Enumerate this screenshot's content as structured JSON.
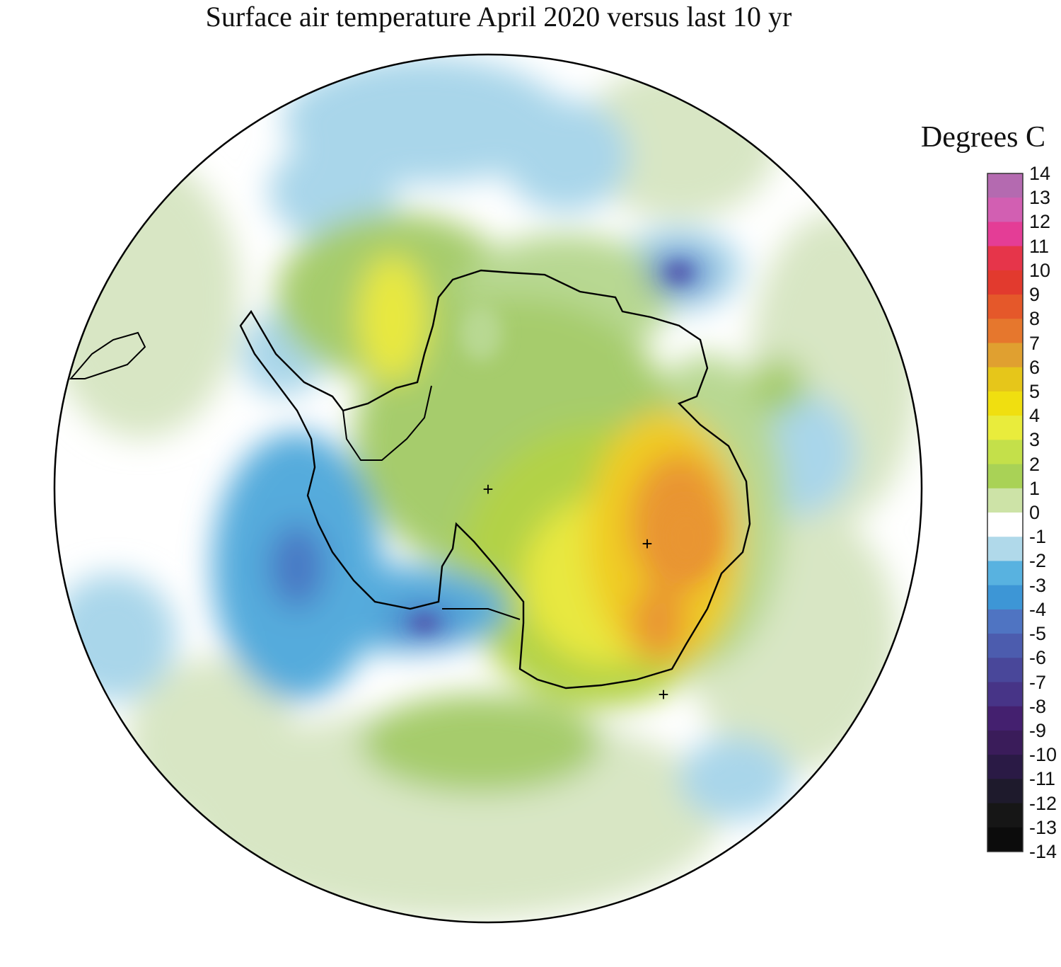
{
  "title": "Surface air temperature April 2020 versus last 10 yr",
  "legend": {
    "title": "Degrees C",
    "ticks": [
      "14",
      "13",
      "12",
      "11",
      "10",
      "9",
      "8",
      "7",
      "6",
      "5",
      "4",
      "3",
      "2",
      "1",
      "0",
      "-1",
      "-2",
      "-3",
      "-4",
      "-5",
      "-6",
      "-7",
      "-8",
      "-9",
      "-10",
      "-11",
      "-12",
      "-13",
      "-14"
    ],
    "colors": [
      "#b46ab0",
      "#d25fb2",
      "#e43d96",
      "#e6354a",
      "#e23a2e",
      "#e5582a",
      "#e6772d",
      "#e0a030",
      "#e6c61a",
      "#f0df10",
      "#e9ec3c",
      "#c4e04a",
      "#a9d256",
      "#cde3a7",
      "#ffffff",
      "#b0d9ea",
      "#58b2e0",
      "#3d96d6",
      "#4f74c2",
      "#4c5cae",
      "#49479a",
      "#473487",
      "#44206f",
      "#3a1c5a",
      "#2a1a45",
      "#1e1a2c",
      "#161616",
      "#0c0c0c"
    ]
  },
  "map": {
    "projection": "south polar stereographic",
    "colors": {
      "pale_green": "#d8e6c4",
      "light_green": "#b8d892",
      "mid_green": "#a6cc6c",
      "bright_green": "#b2d246",
      "yellow": "#e8e840",
      "gold": "#f0cc20",
      "orange": "#e99530",
      "light_blue": "#a9d6ea",
      "mid_blue": "#55abdc",
      "dark_blue": "#4a78c4",
      "purple_blue": "#5350a8",
      "coast": "#000000"
    },
    "markers": [
      "+",
      "+",
      "+"
    ]
  }
}
